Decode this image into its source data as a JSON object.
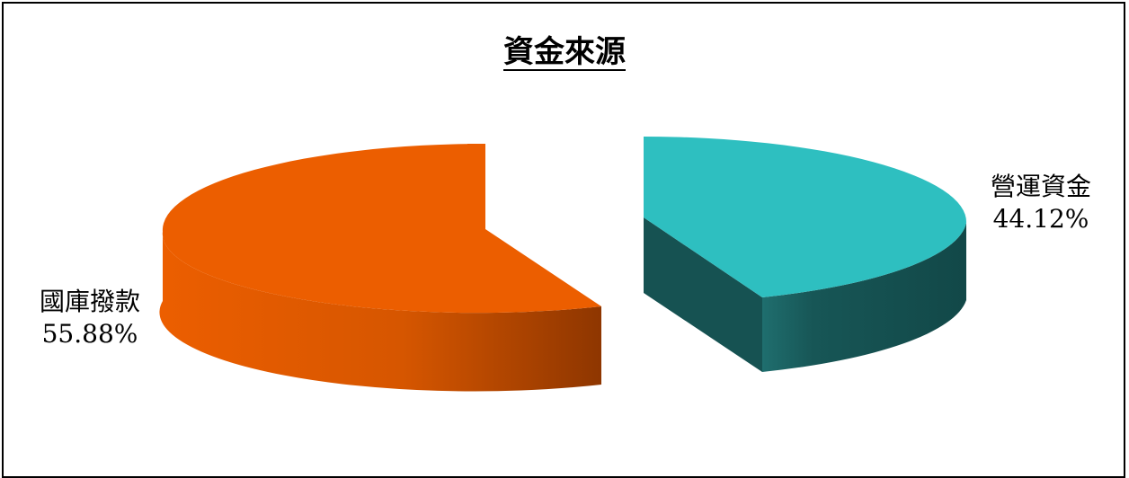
{
  "chart_data": {
    "type": "pie",
    "title": "資金來源",
    "slices": [
      {
        "label": "國庫撥款",
        "percent_label": "55.88%",
        "value": 55.88,
        "top_color": "#ec5e00",
        "side_color": "#c14a00"
      },
      {
        "label": "營運資金",
        "percent_label": "44.12%",
        "value": 44.12,
        "top_color": "#2ebfc0",
        "side_color": "#165252"
      }
    ],
    "style": "3d-exploded",
    "legend": "none"
  }
}
